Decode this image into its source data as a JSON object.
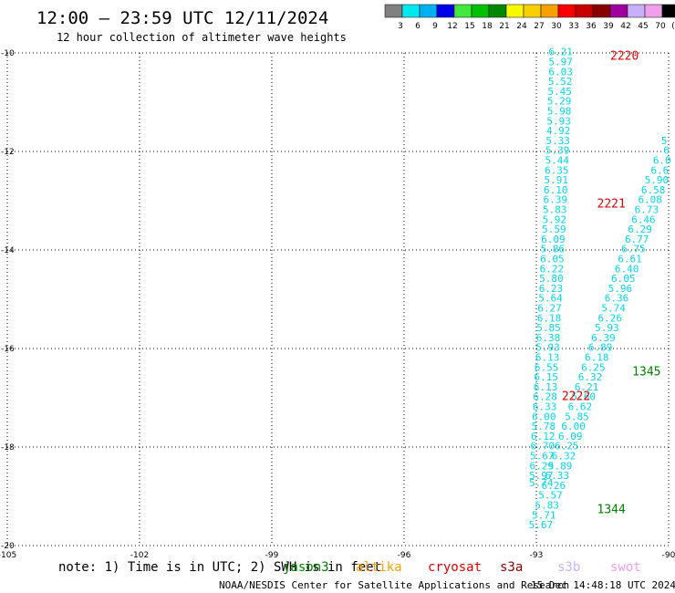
{
  "header": {
    "title": "12:00 – 23:59 UTC 12/11/2024",
    "subtitle": "12 hour collection of altimeter wave heights"
  },
  "colorbar": {
    "colors": [
      "#808080",
      "#00e8f0",
      "#00b0f0",
      "#0000e8",
      "#40e840",
      "#00c000",
      "#008800",
      "#f8f800",
      "#f8d000",
      "#f8a000",
      "#f80000",
      "#c80000",
      "#880000",
      "#a000a0",
      "#c8b0f8",
      "#f0a0e8",
      "#000000"
    ],
    "labels": [
      "3",
      "6",
      "9",
      "12",
      "15",
      "18",
      "21",
      "24",
      "27",
      "30",
      "33",
      "36",
      "39",
      "42",
      "45",
      "70",
      "(ft)"
    ]
  },
  "note": {
    "text": "note: 1) Time is in UTC; 2) SWH is in feet",
    "satellites": [
      {
        "name": "jason3",
        "color": "#008000"
      },
      {
        "name": "altika",
        "color": "#f8a000"
      },
      {
        "name": "cryosat",
        "color": "#e00000"
      },
      {
        "name": "s3a",
        "color": "#880000"
      },
      {
        "name": "s3b",
        "color": "#c8b0f8"
      },
      {
        "name": "swot",
        "color": "#f0a0e8"
      }
    ]
  },
  "footer": {
    "credit": "NOAA/NESDIS Center for Satellite Applications and Research",
    "timestamp": "15 Dec 14:48:18 UTC 2024"
  },
  "chart_data": {
    "type": "scatter",
    "title": "12:00 – 23:59 UTC 12/11/2024",
    "xlim": [
      -105,
      -90
    ],
    "ylim": [
      -20,
      -10
    ],
    "x_ticks": [
      "-105",
      "-102",
      "-99",
      "-96",
      "-93",
      "-90"
    ],
    "y_ticks": [
      "-10",
      "-12",
      "-14",
      "-16",
      "-18",
      "-20"
    ],
    "grid": true,
    "series": [
      {
        "points": [
          {
            "x": -92.45,
            "y": -10.05,
            "label": "6.21"
          },
          {
            "x": -92.45,
            "y": -10.25,
            "label": "5.97"
          },
          {
            "x": -92.45,
            "y": -10.45,
            "label": "6.03"
          },
          {
            "x": -92.46,
            "y": -10.65,
            "label": "5.52"
          },
          {
            "x": -92.47,
            "y": -10.85,
            "label": "5.45"
          },
          {
            "x": -92.48,
            "y": -11.05,
            "label": "5.29"
          },
          {
            "x": -92.48,
            "y": -11.25,
            "label": "5.98"
          },
          {
            "x": -92.49,
            "y": -11.45,
            "label": "5.93"
          },
          {
            "x": -92.5,
            "y": -11.65,
            "label": "4.92"
          },
          {
            "x": -92.51,
            "y": -11.85,
            "label": "5.33"
          },
          {
            "x": -92.52,
            "y": -12.05,
            "label": "5.39"
          },
          {
            "x": -92.53,
            "y": -12.25,
            "label": "5.44"
          },
          {
            "x": -92.54,
            "y": -12.45,
            "label": "6.35"
          },
          {
            "x": -92.55,
            "y": -12.65,
            "label": "5.91"
          },
          {
            "x": -92.56,
            "y": -12.85,
            "label": "6.10"
          },
          {
            "x": -92.57,
            "y": -13.05,
            "label": "6.39"
          },
          {
            "x": -92.58,
            "y": -13.25,
            "label": "5.83"
          },
          {
            "x": -92.59,
            "y": -13.45,
            "label": "5.92"
          },
          {
            "x": -92.6,
            "y": -13.65,
            "label": "5.59"
          },
          {
            "x": -92.62,
            "y": -13.85,
            "label": "6.09"
          },
          {
            "x": -92.63,
            "y": -14.05,
            "label": "5.86"
          },
          {
            "x": -92.64,
            "y": -14.25,
            "label": "6.05"
          },
          {
            "x": -92.65,
            "y": -14.45,
            "label": "6.22"
          },
          {
            "x": -92.66,
            "y": -14.65,
            "label": "5.80"
          },
          {
            "x": -92.67,
            "y": -14.85,
            "label": "6.23"
          },
          {
            "x": -92.68,
            "y": -15.05,
            "label": "5.64"
          },
          {
            "x": -92.7,
            "y": -15.25,
            "label": "6.27"
          },
          {
            "x": -92.71,
            "y": -15.45,
            "label": "6.18"
          },
          {
            "x": -92.72,
            "y": -15.65,
            "label": "5.85"
          },
          {
            "x": -92.73,
            "y": -15.85,
            "label": "6.38"
          },
          {
            "x": -92.74,
            "y": -16.05,
            "label": "5.93"
          },
          {
            "x": -92.75,
            "y": -16.25,
            "label": "6.13"
          },
          {
            "x": -92.77,
            "y": -16.45,
            "label": "6.55"
          },
          {
            "x": -92.78,
            "y": -16.65,
            "label": "6.15"
          },
          {
            "x": -92.79,
            "y": -16.85,
            "label": "6.13"
          },
          {
            "x": -92.8,
            "y": -17.05,
            "label": "6.28"
          },
          {
            "x": -92.81,
            "y": -17.25,
            "label": "6.33"
          },
          {
            "x": -92.83,
            "y": -17.45,
            "label": "6.00"
          },
          {
            "x": -92.84,
            "y": -17.65,
            "label": "5.78"
          },
          {
            "x": -92.85,
            "y": -17.85,
            "label": "6.12"
          },
          {
            "x": -92.86,
            "y": -18.05,
            "label": "6.70"
          },
          {
            "x": -92.87,
            "y": -18.25,
            "label": "5.67"
          },
          {
            "x": -92.88,
            "y": -18.45,
            "label": "6.29"
          },
          {
            "x": -92.89,
            "y": -18.65,
            "label": "5.97"
          },
          {
            "x": -92.89,
            "y": -18.8,
            "label": "5.74"
          },
          {
            "x": -90.1,
            "y": -11.85,
            "label": "5"
          },
          {
            "x": -90.05,
            "y": -12.05,
            "label": "6"
          },
          {
            "x": -90.15,
            "y": -12.25,
            "label": "6.0"
          },
          {
            "x": -90.2,
            "y": -12.45,
            "label": "6.6"
          },
          {
            "x": -90.27,
            "y": -12.65,
            "label": "5.90"
          },
          {
            "x": -90.35,
            "y": -12.85,
            "label": "6.58"
          },
          {
            "x": -90.42,
            "y": -13.05,
            "label": "6.08"
          },
          {
            "x": -90.5,
            "y": -13.25,
            "label": "6.73"
          },
          {
            "x": -90.57,
            "y": -13.45,
            "label": "6.46"
          },
          {
            "x": -90.65,
            "y": -13.65,
            "label": "6.29"
          },
          {
            "x": -90.72,
            "y": -13.85,
            "label": "6.77"
          },
          {
            "x": -90.8,
            "y": -14.05,
            "label": "6.75"
          },
          {
            "x": -90.88,
            "y": -14.25,
            "label": "6.61"
          },
          {
            "x": -90.95,
            "y": -14.45,
            "label": "6.40"
          },
          {
            "x": -91.03,
            "y": -14.65,
            "label": "6.05"
          },
          {
            "x": -91.1,
            "y": -14.85,
            "label": "5.96"
          },
          {
            "x": -91.18,
            "y": -15.05,
            "label": "6.36"
          },
          {
            "x": -91.25,
            "y": -15.25,
            "label": "5.74"
          },
          {
            "x": -91.33,
            "y": -15.45,
            "label": "6.26"
          },
          {
            "x": -91.4,
            "y": -15.65,
            "label": "5.93"
          },
          {
            "x": -91.48,
            "y": -15.85,
            "label": "6.39"
          },
          {
            "x": -91.55,
            "y": -16.05,
            "label": "6.89"
          },
          {
            "x": -91.63,
            "y": -16.25,
            "label": "6.18"
          },
          {
            "x": -91.71,
            "y": -16.45,
            "label": "6.25"
          },
          {
            "x": -91.78,
            "y": -16.65,
            "label": "6.32"
          },
          {
            "x": -91.86,
            "y": -16.85,
            "label": "6.21"
          },
          {
            "x": -91.93,
            "y": -17.05,
            "label": "5.60"
          },
          {
            "x": -92.01,
            "y": -17.25,
            "label": "6.62"
          },
          {
            "x": -92.08,
            "y": -17.45,
            "label": "5.85"
          },
          {
            "x": -92.16,
            "y": -17.65,
            "label": "6.00"
          },
          {
            "x": -92.23,
            "y": -17.85,
            "label": "6.09"
          },
          {
            "x": -92.31,
            "y": -18.05,
            "label": "6.25"
          },
          {
            "x": -92.38,
            "y": -18.25,
            "label": "6.32"
          },
          {
            "x": -92.46,
            "y": -18.45,
            "label": "5.89"
          },
          {
            "x": -92.53,
            "y": -18.65,
            "label": "6.33"
          },
          {
            "x": -92.61,
            "y": -18.85,
            "label": "6.26"
          },
          {
            "x": -92.68,
            "y": -19.05,
            "label": "5.57"
          },
          {
            "x": -92.76,
            "y": -19.25,
            "label": "5.83"
          },
          {
            "x": -92.83,
            "y": -19.45,
            "label": "5.71"
          },
          {
            "x": -92.9,
            "y": -19.65,
            "label": "5.67"
          }
        ]
      }
    ],
    "time_labels": [
      {
        "x": -91.0,
        "y": -10.05,
        "label": "2220",
        "color": "#e00000"
      },
      {
        "x": -91.3,
        "y": -13.05,
        "label": "2221",
        "color": "#e00000"
      },
      {
        "x": -92.1,
        "y": -16.95,
        "label": "2222",
        "color": "#e00000"
      },
      {
        "x": -90.5,
        "y": -16.45,
        "label": "1345",
        "color": "#008000"
      },
      {
        "x": -91.3,
        "y": -19.25,
        "label": "1344",
        "color": "#008000"
      }
    ]
  }
}
